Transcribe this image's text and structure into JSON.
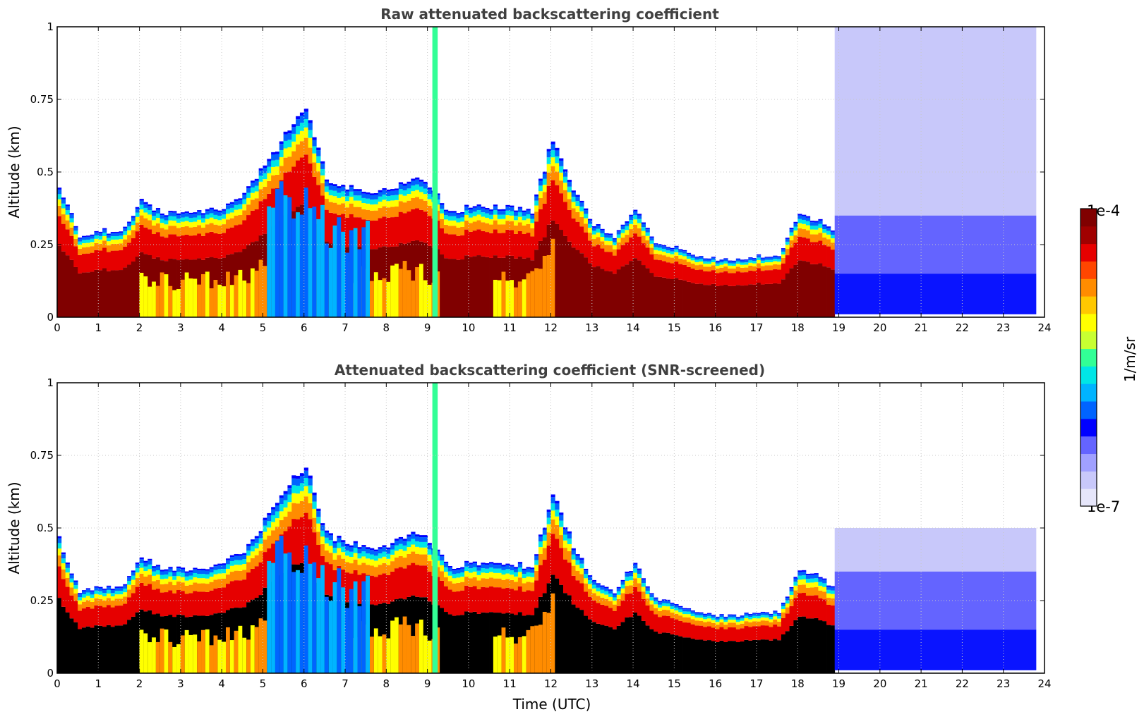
{
  "chart_data": [
    {
      "type": "heatmap",
      "title": "Raw attenuated backscattering coefficient",
      "xlabel": "",
      "ylabel": "Altitude (km)",
      "xlim": [
        0,
        24
      ],
      "ylim": [
        0,
        1
      ],
      "x_ticks": [
        "0",
        "1",
        "2",
        "3",
        "4",
        "5",
        "6",
        "7",
        "8",
        "9",
        "10",
        "11",
        "12",
        "13",
        "14",
        "15",
        "16",
        "17",
        "18",
        "19",
        "20",
        "21",
        "22",
        "23",
        "24"
      ],
      "y_ticks": [
        "0",
        "0.25",
        "0.5",
        "0.75",
        "1"
      ],
      "grid": true,
      "color_scale": "log, 1e-7 to 1e-4 1/m/sr, white-blue-cyan-yellow-red-darkred",
      "boundary_layer": {
        "time_utc": [
          0,
          0.5,
          1,
          1.5,
          2,
          2.5,
          3,
          3.5,
          4,
          4.5,
          5,
          5.5,
          6,
          6.5,
          7,
          7.5,
          8,
          8.5,
          9,
          9.5,
          10,
          10.5,
          11,
          11.5,
          12,
          12.5,
          13,
          13.5,
          14,
          14.5,
          15,
          15.5,
          16,
          16.5,
          17,
          17.5,
          18,
          18.5,
          19
        ],
        "top_km": [
          0.46,
          0.28,
          0.3,
          0.29,
          0.4,
          0.36,
          0.36,
          0.36,
          0.38,
          0.42,
          0.52,
          0.63,
          0.72,
          0.48,
          0.45,
          0.43,
          0.44,
          0.48,
          0.46,
          0.36,
          0.38,
          0.38,
          0.38,
          0.36,
          0.62,
          0.44,
          0.32,
          0.28,
          0.38,
          0.26,
          0.24,
          0.21,
          0.2,
          0.2,
          0.21,
          0.21,
          0.36,
          0.33,
          0.28
        ]
      },
      "noise_region": {
        "time_utc": [
          18.9,
          23.8
        ],
        "color": "#0a14ff"
      }
    },
    {
      "type": "heatmap",
      "title": "Attenuated backscattering coefficient (SNR-screened)",
      "xlabel": "Time (UTC)",
      "ylabel": "Altitude (km)",
      "xlim": [
        0,
        24
      ],
      "ylim": [
        0,
        1
      ],
      "x_ticks": [
        "0",
        "1",
        "2",
        "3",
        "4",
        "5",
        "6",
        "7",
        "8",
        "9",
        "10",
        "11",
        "12",
        "13",
        "14",
        "15",
        "16",
        "17",
        "18",
        "19",
        "20",
        "21",
        "22",
        "23",
        "24"
      ],
      "y_ticks": [
        "0",
        "0.25",
        "0.5",
        "0.75",
        "1"
      ],
      "grid": true,
      "saturated_color": "#000000",
      "noise_region": {
        "time_utc": [
          18.9,
          23.8
        ],
        "color": "#0a14ff"
      }
    }
  ],
  "colorbar": {
    "label": "1/m/sr",
    "max_label": "1e-4",
    "min_label": "1e-7",
    "colors": [
      "#e6e6fa",
      "#c8c8fa",
      "#a0a0ff",
      "#6464ff",
      "#0000ff",
      "#0064ff",
      "#00b4ff",
      "#00e6e6",
      "#32ff96",
      "#c8ff32",
      "#ffff00",
      "#ffc800",
      "#ff8c00",
      "#ff4600",
      "#e60000",
      "#a00000",
      "#800000"
    ]
  }
}
